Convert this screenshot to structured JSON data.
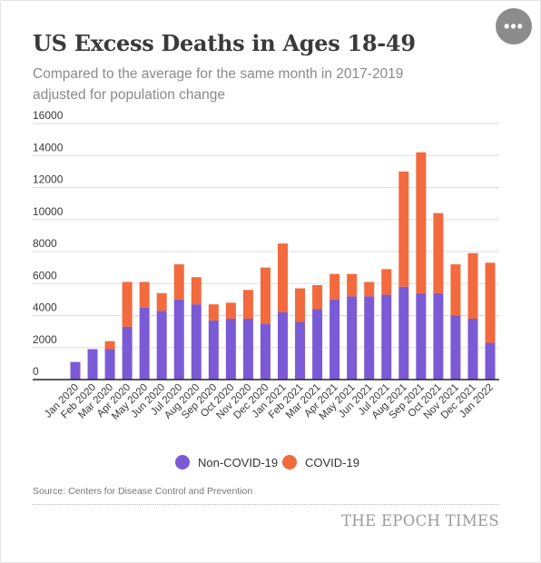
{
  "title": "US Excess Deaths in Ages 18-49",
  "subtitle": "Compared to the average for the same month in 2017-2019 adjusted for population change",
  "menu_button": {
    "icon": "more-horizontal-icon",
    "label": "•••"
  },
  "source": "Source: Centers for Disease Control and Prevention",
  "brand": "THE EPOCH TIMES",
  "colors": {
    "non_covid": "#7b5ad6",
    "covid": "#f26a3d",
    "grid": "#dddddd",
    "axis": "#222222"
  },
  "chart_data": {
    "type": "bar",
    "stacked": true,
    "title": "US Excess Deaths in Ages 18-49",
    "subtitle": "Compared to the average for the same month in 2017-2019 adjusted for population change",
    "xlabel": "",
    "ylabel": "",
    "ylim": [
      0,
      16000
    ],
    "yticks": [
      0,
      2000,
      4000,
      6000,
      8000,
      10000,
      12000,
      14000,
      16000
    ],
    "ytick_labels": [
      "0",
      "2000",
      "4000",
      "6000",
      "8000",
      "10000",
      "12000",
      "14000",
      "16000"
    ],
    "grid": true,
    "legend": "bottom-center",
    "categories": [
      "Jan 2020",
      "Feb 2020",
      "Mar 2020",
      "Apr 2020",
      "May 2020",
      "Jun 2020",
      "Jul 2020",
      "Aug 2020",
      "Sep 2020",
      "Oct 2020",
      "Nov 2020",
      "Dec 2020",
      "Jan 2021",
      "Feb 2021",
      "Mar 2021",
      "Apr 2021",
      "May 2021",
      "Jun 2021",
      "Jul 2021",
      "Aug 2021",
      "Sep 2021",
      "Oct 2021",
      "Nov 2021",
      "Dec 2021",
      "Jan 2022"
    ],
    "series": [
      {
        "name": "Non-COVID-19",
        "color": "#7b5ad6",
        "values": [
          1100,
          1900,
          1900,
          3300,
          4500,
          4300,
          5000,
          4700,
          3700,
          3800,
          3800,
          3500,
          4200,
          3600,
          4400,
          5000,
          5200,
          5200,
          5300,
          5800,
          5400,
          5400,
          4000,
          3800,
          2300
        ]
      },
      {
        "name": "COVID-19",
        "color": "#f26a3d",
        "values": [
          0,
          0,
          500,
          2800,
          1600,
          1100,
          2200,
          1700,
          1000,
          1000,
          1800,
          3500,
          4300,
          2100,
          1500,
          1600,
          1400,
          900,
          1600,
          7200,
          8800,
          5000,
          3200,
          4100,
          5000
        ]
      }
    ]
  }
}
